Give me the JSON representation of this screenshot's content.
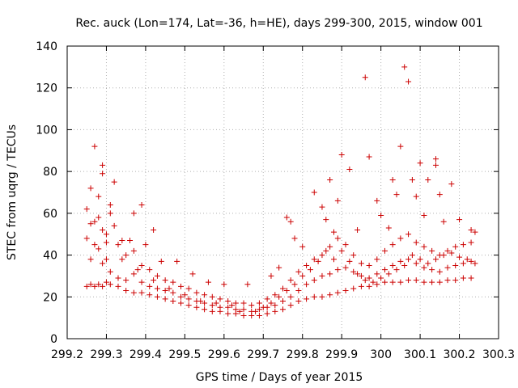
{
  "chart_data": {
    "type": "scatter",
    "title": "Rec. auck (Lon=174, Lat=-36, h=HE), days 299-300, 2015, window 001",
    "xlabel": "GPS time / Days of year 2015",
    "ylabel": "STEC from uqrg / TECUs",
    "xlim": [
      299.2,
      300.3
    ],
    "ylim": [
      0,
      140
    ],
    "xticks": [
      "299.2",
      "299.3",
      "299.4",
      "299.5",
      "299.6",
      "299.7",
      "299.8",
      "299.9",
      "300",
      "300.1",
      "300.2",
      "300.3"
    ],
    "yticks": [
      "0",
      "20",
      "40",
      "60",
      "80",
      "100",
      "120",
      "140"
    ],
    "grid": true,
    "legend": "none",
    "marker": "+",
    "color": "#cc0000",
    "series": [
      {
        "points": [
          [
            299.25,
            25
          ],
          [
            299.26,
            26
          ],
          [
            299.27,
            25
          ],
          [
            299.28,
            26
          ],
          [
            299.29,
            25
          ],
          [
            299.3,
            27
          ],
          [
            299.31,
            26
          ],
          [
            299.33,
            25
          ],
          [
            299.35,
            23
          ],
          [
            299.37,
            22
          ],
          [
            299.39,
            22
          ],
          [
            299.41,
            21
          ],
          [
            299.43,
            20
          ],
          [
            299.45,
            19
          ],
          [
            299.47,
            18
          ],
          [
            299.49,
            17
          ],
          [
            299.51,
            16
          ],
          [
            299.53,
            15
          ],
          [
            299.55,
            14
          ],
          [
            299.57,
            13
          ],
          [
            299.59,
            13
          ],
          [
            299.61,
            12
          ],
          [
            299.63,
            12
          ],
          [
            299.65,
            11
          ],
          [
            299.67,
            11
          ],
          [
            299.69,
            11
          ],
          [
            299.71,
            12
          ],
          [
            299.73,
            13
          ],
          [
            299.75,
            14
          ],
          [
            299.77,
            16
          ],
          [
            299.79,
            18
          ],
          [
            299.81,
            19
          ],
          [
            299.83,
            20
          ],
          [
            299.85,
            20
          ],
          [
            299.87,
            21
          ],
          [
            299.89,
            22
          ],
          [
            299.91,
            23
          ],
          [
            299.93,
            24
          ],
          [
            299.95,
            25
          ],
          [
            299.97,
            25
          ],
          [
            299.99,
            26
          ],
          [
            300.01,
            27
          ],
          [
            300.03,
            27
          ],
          [
            300.05,
            27
          ],
          [
            300.07,
            28
          ],
          [
            300.09,
            28
          ],
          [
            300.11,
            27
          ],
          [
            300.13,
            27
          ],
          [
            300.15,
            27
          ],
          [
            300.17,
            28
          ],
          [
            300.19,
            28
          ],
          [
            300.21,
            29
          ],
          [
            300.23,
            29
          ],
          [
            299.25,
            48
          ],
          [
            299.26,
            38
          ],
          [
            299.27,
            56
          ],
          [
            299.28,
            43
          ],
          [
            299.29,
            36
          ],
          [
            299.3,
            46
          ],
          [
            299.31,
            32
          ],
          [
            299.33,
            29
          ],
          [
            299.35,
            28
          ],
          [
            299.37,
            31
          ],
          [
            299.39,
            27
          ],
          [
            299.41,
            25
          ],
          [
            299.43,
            24
          ],
          [
            299.45,
            23
          ],
          [
            299.47,
            22
          ],
          [
            299.49,
            20
          ],
          [
            299.51,
            19
          ],
          [
            299.53,
            18
          ],
          [
            299.55,
            17
          ],
          [
            299.57,
            16
          ],
          [
            299.59,
            15
          ],
          [
            299.61,
            15
          ],
          [
            299.63,
            14
          ],
          [
            299.65,
            14
          ],
          [
            299.67,
            13
          ],
          [
            299.69,
            14
          ],
          [
            299.71,
            15
          ],
          [
            299.73,
            16
          ],
          [
            299.75,
            18
          ],
          [
            299.77,
            20
          ],
          [
            299.79,
            23
          ],
          [
            299.81,
            26
          ],
          [
            299.83,
            28
          ],
          [
            299.85,
            30
          ],
          [
            299.87,
            31
          ],
          [
            299.89,
            33
          ],
          [
            299.91,
            34
          ],
          [
            299.93,
            32
          ],
          [
            299.95,
            30
          ],
          [
            299.97,
            29
          ],
          [
            299.99,
            31
          ],
          [
            300.01,
            33
          ],
          [
            300.03,
            35
          ],
          [
            300.05,
            37
          ],
          [
            300.07,
            38
          ],
          [
            300.09,
            36
          ],
          [
            300.11,
            34
          ],
          [
            300.13,
            33
          ],
          [
            300.15,
            32
          ],
          [
            300.17,
            34
          ],
          [
            300.19,
            35
          ],
          [
            300.21,
            36
          ],
          [
            300.23,
            37
          ],
          [
            299.25,
            62
          ],
          [
            299.26,
            72
          ],
          [
            299.27,
            45
          ],
          [
            299.28,
            68
          ],
          [
            299.29,
            52
          ],
          [
            299.3,
            38
          ],
          [
            299.31,
            60
          ],
          [
            299.33,
            45
          ],
          [
            299.35,
            40
          ],
          [
            299.37,
            42
          ],
          [
            299.39,
            35
          ],
          [
            299.41,
            33
          ],
          [
            299.43,
            30
          ],
          [
            299.45,
            28
          ],
          [
            299.47,
            27
          ],
          [
            299.49,
            25
          ],
          [
            299.51,
            24
          ],
          [
            299.53,
            22
          ],
          [
            299.55,
            21
          ],
          [
            299.57,
            20
          ],
          [
            299.59,
            19
          ],
          [
            299.61,
            18
          ],
          [
            299.63,
            17
          ],
          [
            299.65,
            17
          ],
          [
            299.67,
            16
          ],
          [
            299.69,
            17
          ],
          [
            299.71,
            19
          ],
          [
            299.73,
            21
          ],
          [
            299.75,
            24
          ],
          [
            299.77,
            28
          ],
          [
            299.79,
            32
          ],
          [
            299.81,
            35
          ],
          [
            299.83,
            38
          ],
          [
            299.85,
            40
          ],
          [
            299.87,
            44
          ],
          [
            299.89,
            48
          ],
          [
            299.91,
            45
          ],
          [
            299.93,
            40
          ],
          [
            299.95,
            36
          ],
          [
            299.97,
            35
          ],
          [
            299.99,
            38
          ],
          [
            300.01,
            42
          ],
          [
            300.03,
            45
          ],
          [
            300.05,
            48
          ],
          [
            300.07,
            50
          ],
          [
            300.09,
            46
          ],
          [
            300.11,
            44
          ],
          [
            300.13,
            42
          ],
          [
            300.15,
            40
          ],
          [
            300.17,
            42
          ],
          [
            300.19,
            44
          ],
          [
            300.21,
            45
          ],
          [
            300.23,
            46
          ],
          [
            299.27,
            92
          ],
          [
            299.29,
            83
          ],
          [
            299.29,
            79
          ],
          [
            299.32,
            75
          ],
          [
            299.31,
            64
          ],
          [
            299.37,
            60
          ],
          [
            299.39,
            64
          ],
          [
            299.42,
            52
          ],
          [
            299.76,
            58
          ],
          [
            299.77,
            56
          ],
          [
            299.83,
            70
          ],
          [
            299.85,
            63
          ],
          [
            299.87,
            76
          ],
          [
            299.89,
            66
          ],
          [
            299.9,
            88
          ],
          [
            299.92,
            81
          ],
          [
            299.96,
            125
          ],
          [
            299.97,
            87
          ],
          [
            300.03,
            76
          ],
          [
            300.04,
            69
          ],
          [
            300.05,
            92
          ],
          [
            300.06,
            130
          ],
          [
            300.07,
            123
          ],
          [
            300.08,
            76
          ],
          [
            300.1,
            84
          ],
          [
            300.12,
            76
          ],
          [
            300.14,
            86
          ],
          [
            300.14,
            83
          ],
          [
            300.15,
            69
          ],
          [
            300.18,
            74
          ],
          [
            300.2,
            57
          ],
          [
            300.23,
            52
          ],
          [
            300.24,
            51
          ],
          [
            300.0,
            59
          ],
          [
            300.02,
            53
          ],
          [
            300.09,
            68
          ],
          [
            300.11,
            59
          ],
          [
            300.16,
            56
          ],
          [
            299.88,
            51
          ],
          [
            299.86,
            57
          ],
          [
            299.94,
            52
          ],
          [
            299.99,
            66
          ],
          [
            299.8,
            44
          ],
          [
            299.78,
            48
          ],
          [
            299.74,
            34
          ],
          [
            299.72,
            30
          ],
          [
            299.66,
            26
          ],
          [
            299.6,
            26
          ],
          [
            299.56,
            27
          ],
          [
            299.52,
            31
          ],
          [
            299.48,
            37
          ],
          [
            299.44,
            37
          ],
          [
            299.4,
            45
          ],
          [
            299.36,
            47
          ],
          [
            299.34,
            47
          ],
          [
            299.32,
            54
          ],
          [
            299.26,
            55
          ],
          [
            299.28,
            58
          ],
          [
            299.3,
            50
          ],
          [
            299.34,
            38
          ],
          [
            299.38,
            33
          ],
          [
            299.42,
            28
          ],
          [
            299.46,
            24
          ],
          [
            299.5,
            21
          ],
          [
            299.54,
            18
          ],
          [
            299.58,
            17
          ],
          [
            299.62,
            16
          ],
          [
            299.64,
            13
          ],
          [
            299.68,
            13
          ],
          [
            299.7,
            15
          ],
          [
            299.72,
            17
          ],
          [
            299.74,
            20
          ],
          [
            299.76,
            23
          ],
          [
            299.78,
            26
          ],
          [
            299.8,
            30
          ],
          [
            299.82,
            33
          ],
          [
            299.84,
            37
          ],
          [
            299.86,
            42
          ],
          [
            299.88,
            38
          ],
          [
            299.9,
            42
          ],
          [
            299.92,
            37
          ],
          [
            299.94,
            31
          ],
          [
            299.96,
            28
          ],
          [
            299.98,
            27
          ],
          [
            300.0,
            29
          ],
          [
            300.02,
            31
          ],
          [
            300.04,
            33
          ],
          [
            300.06,
            35
          ],
          [
            300.08,
            40
          ],
          [
            300.1,
            38
          ],
          [
            300.12,
            36
          ],
          [
            300.14,
            38
          ],
          [
            300.16,
            40
          ],
          [
            300.18,
            41
          ],
          [
            300.2,
            39
          ],
          [
            300.22,
            38
          ],
          [
            300.24,
            36
          ]
        ]
      }
    ]
  }
}
